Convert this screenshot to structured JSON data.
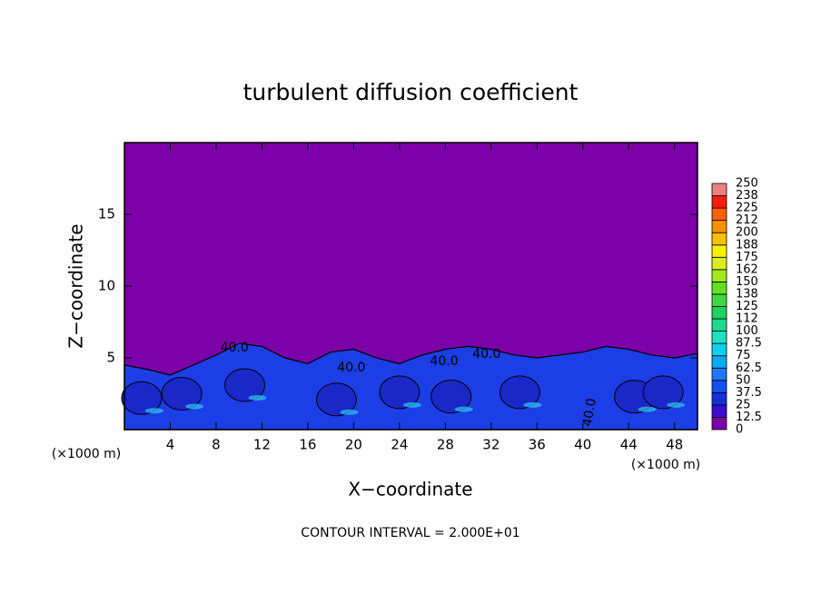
{
  "chart_data": {
    "type": "contour",
    "title": "turbulent diffusion coefficient",
    "xlabel": "X−coordinate",
    "ylabel": "Z−coordinate",
    "x_unit_label": "(×1000 m)",
    "note": "CONTOUR INTERVAL = 2.000E+01",
    "xlim": [
      0,
      50
    ],
    "xticks": [
      4,
      8,
      12,
      16,
      20,
      24,
      28,
      32,
      36,
      40,
      44,
      48
    ],
    "ylim": [
      0,
      20
    ],
    "yticks": [
      5,
      10,
      15
    ],
    "background_color": "#7b00a8",
    "layer": {
      "color": "#1c3ee6",
      "x": [
        0,
        2,
        4,
        6,
        8,
        10,
        12,
        14,
        16,
        18,
        20,
        22,
        24,
        26,
        28,
        30,
        32,
        34,
        36,
        38,
        40,
        42,
        44,
        46,
        48,
        50
      ],
      "top": [
        4.5,
        4.2,
        3.8,
        4.5,
        5.2,
        6.0,
        5.8,
        5.0,
        4.6,
        5.4,
        5.6,
        5.0,
        4.6,
        5.2,
        5.6,
        5.8,
        5.6,
        5.2,
        5.0,
        5.2,
        5.4,
        5.8,
        5.6,
        5.2,
        5.0,
        5.3
      ]
    },
    "eddies": {
      "color": "#1a28c8",
      "x": [
        1.5,
        5,
        10.5,
        18.5,
        24,
        28.5,
        34.5,
        44.5,
        47
      ],
      "z": [
        2.2,
        2.5,
        3.1,
        2.1,
        2.6,
        2.3,
        2.6,
        2.3,
        2.6
      ]
    },
    "contour_labels": [
      {
        "level": 40,
        "label": "40.0",
        "x": 9.6,
        "z": 5.7
      },
      {
        "level": 40,
        "label": "40.0",
        "x": 19.8,
        "z": 4.3
      },
      {
        "level": 40,
        "label": "40.0",
        "x": 27.9,
        "z": 4.75
      },
      {
        "level": 40,
        "label": "40.0",
        "x": 31.6,
        "z": 5.25
      },
      {
        "level": 40,
        "label": "40.0",
        "x": 40.6,
        "z": 1.2
      }
    ],
    "colorbar": {
      "levels": [
        0,
        12.5,
        25,
        37.5,
        50,
        62.5,
        75,
        87.5,
        100,
        {
          "value": 112.5,
          "label": "112"
        },
        125,
        {
          "value": 137.5,
          "label": "138"
        },
        150,
        {
          "value": 162.5,
          "label": "162"
        },
        175,
        {
          "value": 187.5,
          "label": "188"
        },
        200,
        {
          "value": 212.5,
          "label": "212"
        },
        225,
        {
          "value": 237.5,
          "label": "238"
        },
        250
      ],
      "colors": [
        "#7b00a8",
        "#3c10c8",
        "#1630d8",
        "#1850f0",
        "#1e78f8",
        "#10a8f0",
        "#10d0f0",
        "#20e0c0",
        "#20d890",
        "#20d060",
        "#40d840",
        "#60e020",
        "#a0e820",
        "#d8f020",
        "#f8f000",
        "#f8c000",
        "#f89000",
        "#f86000",
        "#f02010",
        "#f08080"
      ]
    }
  }
}
